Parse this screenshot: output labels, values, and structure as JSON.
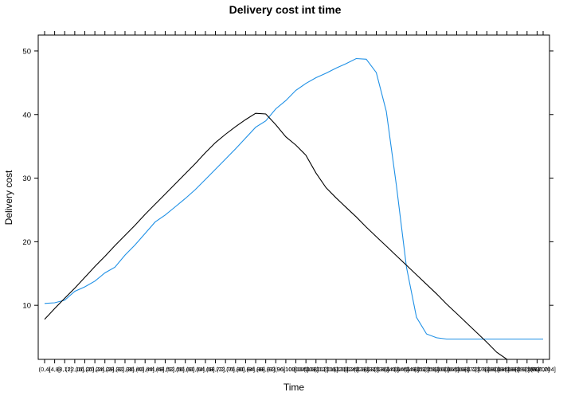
{
  "chart_data": {
    "type": "line",
    "title": "Delivery cost int time",
    "xlabel": "Time",
    "ylabel": "Delivery cost",
    "ylim": [
      1.5,
      52.5
    ],
    "yticks": [
      10,
      20,
      30,
      40,
      50
    ],
    "legend": "none",
    "grid": false,
    "x": [
      0,
      1,
      2,
      3,
      4,
      5,
      6,
      7,
      8,
      9,
      10,
      11,
      12,
      13,
      14,
      15,
      16,
      17,
      18,
      19,
      20,
      21,
      22,
      23,
      24,
      25,
      26,
      27,
      28,
      29,
      30,
      31,
      32,
      33,
      34,
      35,
      36,
      37,
      38,
      39,
      40,
      41,
      42,
      43,
      44,
      45,
      46,
      47,
      48,
      49,
      50,
      51,
      52,
      53,
      54,
      55,
      56,
      57,
      58,
      59,
      60,
      61,
      62,
      63,
      64,
      65,
      66,
      67,
      68,
      69,
      70,
      71,
      72,
      73,
      74,
      75,
      76,
      77,
      78,
      79,
      80,
      81,
      82,
      83,
      84,
      85,
      86,
      87,
      88,
      89,
      90,
      91,
      92,
      93,
      94,
      95,
      96,
      97,
      98,
      99,
      100,
      101,
      102,
      103,
      104,
      105,
      106,
      107,
      108,
      109,
      110,
      111,
      112,
      113,
      114,
      115,
      116,
      117,
      118,
      119,
      120,
      121,
      122,
      123,
      124,
      125,
      126,
      127,
      128,
      129,
      130,
      131,
      132,
      133,
      134,
      135,
      136,
      137,
      138,
      139,
      140,
      141,
      142,
      143,
      144,
      145,
      146,
      147,
      148,
      149,
      150,
      151,
      152,
      153,
      154,
      155,
      156,
      157,
      158,
      159,
      160,
      161,
      162,
      163,
      164,
      165,
      166,
      167,
      168,
      169,
      170,
      171,
      172,
      173,
      174,
      175,
      176,
      177,
      178,
      179,
      180,
      181,
      182,
      183,
      184,
      185,
      186,
      187,
      188,
      189,
      190,
      191,
      192,
      193,
      194,
      195,
      196,
      197,
      198,
      199,
      200,
      201,
      202,
      203,
      204,
      205,
      206,
      207,
      208,
      209,
      210,
      211,
      212,
      213,
      214,
      215,
      216,
      217,
      218,
      219,
      220,
      221,
      222,
      223,
      224,
      225,
      226,
      227,
      228,
      229,
      230,
      231,
      232,
      233,
      234,
      235,
      236,
      237,
      238,
      239,
      240,
      241,
      242,
      243,
      244,
      245,
      246,
      247,
      248
    ],
    "xtick_positions": [
      0,
      5,
      10,
      15,
      20,
      25,
      30,
      35,
      40,
      45,
      50,
      55,
      60,
      65,
      70,
      75,
      80,
      85,
      90,
      95,
      100,
      105,
      110,
      115,
      120,
      125,
      130,
      135,
      140,
      145,
      150,
      155,
      160,
      165,
      170,
      175,
      180,
      185,
      190,
      195,
      200,
      205,
      210,
      215,
      220,
      225,
      230,
      235,
      240,
      245,
      248
    ],
    "xticks": [
      "(0,4]",
      "(4,8]",
      "(8,12]",
      "(12,16]",
      "(16,20]",
      "(20,24]",
      "(24,28]",
      "(28,32]",
      "(32,36]",
      "(36,40]",
      "(40,44]",
      "(44,48]",
      "(48,52]",
      "(52,56]",
      "(56,60]",
      "(60,64]",
      "(64,68]",
      "(68,72]",
      "(72,76]",
      "(76,80]",
      "(80,84]",
      "(84,88]",
      "(88,92]",
      "(92,96]",
      "(96,100]",
      "(100,104]",
      "(104,108]",
      "(108,112]",
      "(112,116]",
      "(116,120]",
      "(120,124]",
      "(124,128]",
      "(128,132]",
      "(132,136]",
      "(136,140]",
      "(140,144]",
      "(144,148]",
      "(148,152]",
      "(152,156]",
      "(156,160]",
      "(160,164]",
      "(164,168]",
      "(168,172]",
      "(172,176]",
      "(176,180]",
      "(180,184]",
      "(184,188]",
      "(188,192]",
      "(192,196]",
      "(196,200]",
      "(200,204]"
    ],
    "series": [
      {
        "color": "#1E90E6",
        "x": [
          0,
          5,
          10,
          15,
          20,
          25,
          30,
          35,
          40,
          45,
          50,
          55,
          60,
          65,
          70,
          75,
          80,
          85,
          90,
          95,
          100,
          105,
          110,
          115,
          120,
          125,
          130,
          135,
          140,
          145,
          150,
          155,
          160,
          165,
          170,
          175,
          180,
          185,
          190,
          195,
          200,
          205,
          210,
          215,
          220,
          225,
          230,
          235,
          240,
          245,
          248
        ],
        "values": [
          10.3,
          10.4,
          10.8,
          12.2,
          12.9,
          13.8,
          15.1,
          16.0,
          17.9,
          19.5,
          21.3,
          23.1,
          24.2,
          25.5,
          26.8,
          28.2,
          29.8,
          31.4,
          33.0,
          34.6,
          36.3,
          38.0,
          39.0,
          40.9,
          42.2,
          43.8,
          44.9,
          45.8,
          46.5,
          47.3,
          48.0,
          48.8,
          48.7,
          46.6,
          40.5,
          28.9,
          16.0,
          8.1,
          5.5,
          4.9,
          4.7,
          4.7,
          4.7,
          4.7,
          4.7,
          4.7,
          4.7,
          4.7,
          4.7,
          4.7,
          4.7
        ]
      },
      {
        "color": "#000000",
        "x": [
          0,
          5,
          10,
          15,
          20,
          25,
          30,
          35,
          40,
          45,
          50,
          55,
          60,
          65,
          70,
          75,
          80,
          85,
          90,
          95,
          100,
          105,
          110,
          115,
          120,
          125,
          130,
          135,
          140,
          145,
          150,
          155,
          160,
          165,
          170,
          175,
          180,
          185,
          190,
          195,
          200,
          205,
          210,
          215,
          220,
          225,
          230,
          235,
          240,
          245
        ],
        "values": [
          7.8,
          9.5,
          11.1,
          12.7,
          14.4,
          16.1,
          17.7,
          19.4,
          21.0,
          22.6,
          24.3,
          25.9,
          27.5,
          29.1,
          30.7,
          32.3,
          34.0,
          35.6,
          36.9,
          38.1,
          39.2,
          40.2,
          40.1,
          38.4,
          36.5,
          35.2,
          33.6,
          30.8,
          28.5,
          26.9,
          25.4,
          23.9,
          22.3,
          20.8,
          19.3,
          17.8,
          16.3,
          14.8,
          13.3,
          11.8,
          10.2,
          8.7,
          7.2,
          5.7,
          4.2,
          2.6,
          1.5,
          1.5,
          1.5,
          1.5
        ]
      }
    ]
  }
}
